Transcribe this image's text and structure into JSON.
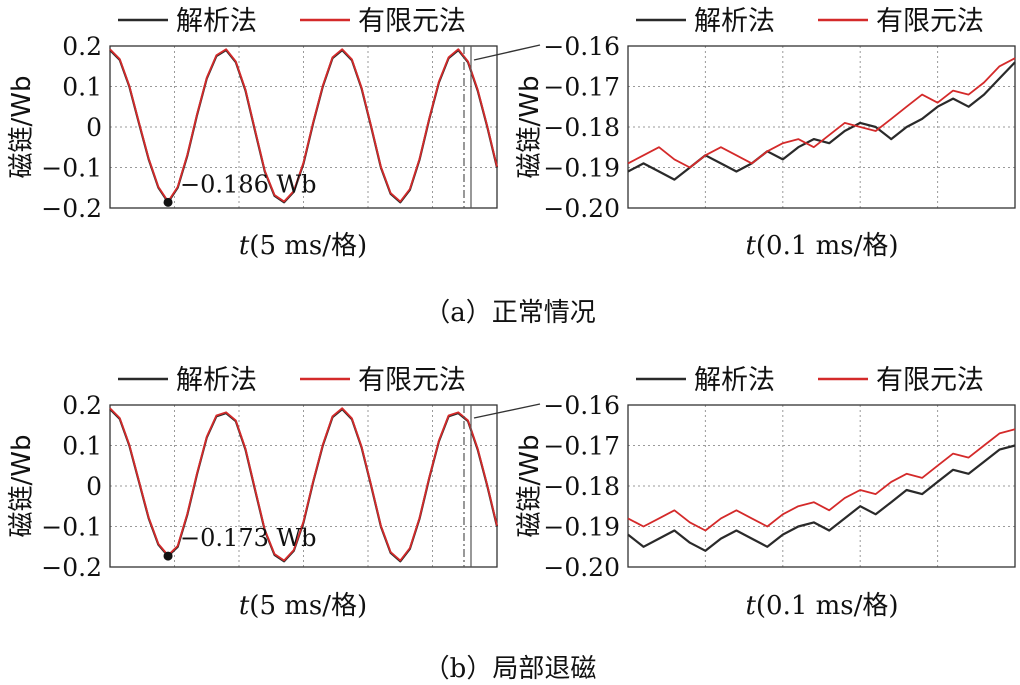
{
  "figure": {
    "legend": {
      "analytic": "解析法",
      "fem": "有限元法"
    },
    "colors": {
      "analytic": "#2a2a2a",
      "fem": "#d42a2a",
      "grid": "#9a9a9a",
      "axis": "#333333"
    },
    "ylabel": "磁链/Wb",
    "xlabel_italic": "t",
    "xlabel_wide": "(5 ms/格)",
    "xlabel_zoom": "(0.1 ms/格)",
    "captions": [
      "（a）正常情况",
      "（b）局部退磁"
    ]
  },
  "chart_data": [
    {
      "id": "a-full",
      "type": "line",
      "ylim": [
        -0.2,
        0.2
      ],
      "yticks": [
        "0.2",
        "0.1",
        "0",
        "−0.1",
        "−0.2"
      ],
      "ytick_values": [
        0.2,
        0.1,
        0,
        -0.1,
        -0.2
      ],
      "x_divisions": 6,
      "grid": true,
      "legend_position": "top",
      "series": [
        {
          "name": "解析法",
          "x": [
            0,
            0.15,
            0.3,
            0.45,
            0.6,
            0.75,
            0.9,
            1.05,
            1.2,
            1.35,
            1.5,
            1.65,
            1.8,
            1.95,
            2.1,
            2.25,
            2.4,
            2.55,
            2.7,
            2.85,
            3.0,
            3.15,
            3.3,
            3.45,
            3.6,
            3.75,
            3.9,
            4.05,
            4.2,
            4.35,
            4.5,
            4.65,
            4.8,
            4.95,
            5.1,
            5.25,
            5.4,
            5.55,
            5.7,
            5.85,
            6.0
          ],
          "y": [
            0.19,
            0.166,
            0.1,
            0.009,
            -0.08,
            -0.15,
            -0.186,
            -0.15,
            -0.07,
            0.03,
            0.12,
            0.175,
            0.19,
            0.16,
            0.09,
            -0.01,
            -0.11,
            -0.17,
            -0.186,
            -0.16,
            -0.09,
            0.01,
            0.1,
            0.17,
            0.19,
            0.165,
            0.095,
            0.0,
            -0.1,
            -0.165,
            -0.186,
            -0.155,
            -0.08,
            0.02,
            0.11,
            0.17,
            0.19,
            0.16,
            0.09,
            0.0,
            -0.1
          ]
        },
        {
          "name": "有限元法",
          "x": [
            0,
            0.15,
            0.3,
            0.45,
            0.6,
            0.75,
            0.9,
            1.05,
            1.2,
            1.35,
            1.5,
            1.65,
            1.8,
            1.95,
            2.1,
            2.25,
            2.4,
            2.55,
            2.7,
            2.85,
            3.0,
            3.15,
            3.3,
            3.45,
            3.6,
            3.75,
            3.9,
            4.05,
            4.2,
            4.35,
            4.5,
            4.65,
            4.8,
            4.95,
            5.1,
            5.25,
            5.4,
            5.55,
            5.7,
            5.85,
            6.0
          ],
          "y": [
            0.192,
            0.168,
            0.102,
            0.011,
            -0.078,
            -0.148,
            -0.184,
            -0.148,
            -0.068,
            0.032,
            0.122,
            0.177,
            0.192,
            0.162,
            0.092,
            -0.008,
            -0.108,
            -0.168,
            -0.184,
            -0.158,
            -0.088,
            0.012,
            0.102,
            0.172,
            0.192,
            0.167,
            0.097,
            0.002,
            -0.098,
            -0.163,
            -0.184,
            -0.153,
            -0.078,
            0.022,
            0.112,
            0.172,
            0.192,
            0.162,
            0.092,
            0.002,
            -0.098
          ]
        }
      ],
      "marker": {
        "x": 0.9,
        "y": -0.186,
        "label": "−0.186 Wb"
      }
    },
    {
      "id": "a-zoom",
      "type": "line",
      "ylim": [
        -0.2,
        -0.16
      ],
      "yticks": [
        "−0.16",
        "−0.17",
        "−0.18",
        "−0.19",
        "−0.20"
      ],
      "ytick_values": [
        -0.16,
        -0.17,
        -0.18,
        -0.19,
        -0.2
      ],
      "x_divisions": 5,
      "grid": true,
      "legend_position": "top",
      "series": [
        {
          "name": "解析法",
          "x": [
            0,
            0.2,
            0.4,
            0.6,
            0.8,
            1.0,
            1.2,
            1.4,
            1.6,
            1.8,
            2.0,
            2.2,
            2.4,
            2.6,
            2.8,
            3.0,
            3.2,
            3.4,
            3.6,
            3.8,
            4.0,
            4.2,
            4.4,
            4.6,
            4.8,
            5.0
          ],
          "y": [
            -0.191,
            -0.189,
            -0.191,
            -0.193,
            -0.19,
            -0.187,
            -0.189,
            -0.191,
            -0.189,
            -0.186,
            -0.188,
            -0.185,
            -0.183,
            -0.184,
            -0.181,
            -0.179,
            -0.18,
            -0.183,
            -0.18,
            -0.178,
            -0.175,
            -0.173,
            -0.175,
            -0.172,
            -0.168,
            -0.164
          ]
        },
        {
          "name": "有限元法",
          "x": [
            0,
            0.2,
            0.4,
            0.6,
            0.8,
            1.0,
            1.2,
            1.4,
            1.6,
            1.8,
            2.0,
            2.2,
            2.4,
            2.6,
            2.8,
            3.0,
            3.2,
            3.4,
            3.6,
            3.8,
            4.0,
            4.2,
            4.4,
            4.6,
            4.8,
            5.0
          ],
          "y": [
            -0.189,
            -0.187,
            -0.185,
            -0.188,
            -0.19,
            -0.187,
            -0.185,
            -0.187,
            -0.189,
            -0.186,
            -0.184,
            -0.183,
            -0.185,
            -0.182,
            -0.179,
            -0.18,
            -0.181,
            -0.178,
            -0.175,
            -0.172,
            -0.174,
            -0.171,
            -0.172,
            -0.169,
            -0.165,
            -0.163
          ]
        }
      ]
    },
    {
      "id": "b-full",
      "type": "line",
      "ylim": [
        -0.2,
        0.2
      ],
      "yticks": [
        "0.2",
        "0.1",
        "0",
        "−0.1",
        "−0.2"
      ],
      "ytick_values": [
        0.2,
        0.1,
        0,
        -0.1,
        -0.2
      ],
      "x_divisions": 6,
      "grid": true,
      "legend_position": "top",
      "series": [
        {
          "name": "解析法",
          "x": [
            0,
            0.15,
            0.3,
            0.45,
            0.6,
            0.75,
            0.9,
            1.05,
            1.2,
            1.35,
            1.5,
            1.65,
            1.8,
            1.95,
            2.1,
            2.25,
            2.4,
            2.55,
            2.7,
            2.85,
            3.0,
            3.15,
            3.3,
            3.45,
            3.6,
            3.75,
            3.9,
            4.05,
            4.2,
            4.35,
            4.5,
            4.65,
            4.8,
            4.95,
            5.1,
            5.25,
            5.4,
            5.55,
            5.7,
            5.85,
            6.0
          ],
          "y": [
            0.19,
            0.166,
            0.1,
            0.01,
            -0.08,
            -0.145,
            -0.173,
            -0.15,
            -0.07,
            0.03,
            0.12,
            0.172,
            0.18,
            0.16,
            0.09,
            -0.01,
            -0.11,
            -0.17,
            -0.186,
            -0.16,
            -0.09,
            0.01,
            0.1,
            0.17,
            0.19,
            0.165,
            0.095,
            0.0,
            -0.1,
            -0.165,
            -0.186,
            -0.155,
            -0.08,
            0.02,
            0.11,
            0.172,
            0.18,
            0.16,
            0.09,
            0.0,
            -0.1
          ]
        },
        {
          "name": "有限元法",
          "x": [
            0,
            0.15,
            0.3,
            0.45,
            0.6,
            0.75,
            0.9,
            1.05,
            1.2,
            1.35,
            1.5,
            1.65,
            1.8,
            1.95,
            2.1,
            2.25,
            2.4,
            2.55,
            2.7,
            2.85,
            3.0,
            3.15,
            3.3,
            3.45,
            3.6,
            3.75,
            3.9,
            4.05,
            4.2,
            4.35,
            4.5,
            4.65,
            4.8,
            4.95,
            5.1,
            5.25,
            5.4,
            5.55,
            5.7,
            5.85,
            6.0
          ],
          "y": [
            0.192,
            0.168,
            0.102,
            0.012,
            -0.078,
            -0.143,
            -0.171,
            -0.148,
            -0.068,
            0.032,
            0.122,
            0.174,
            0.182,
            0.162,
            0.092,
            -0.008,
            -0.108,
            -0.168,
            -0.184,
            -0.158,
            -0.088,
            0.012,
            0.102,
            0.172,
            0.192,
            0.167,
            0.097,
            0.002,
            -0.098,
            -0.163,
            -0.184,
            -0.153,
            -0.078,
            0.022,
            0.112,
            0.174,
            0.182,
            0.162,
            0.092,
            0.002,
            -0.098
          ]
        }
      ],
      "marker": {
        "x": 0.9,
        "y": -0.173,
        "label": "−0.173 Wb"
      }
    },
    {
      "id": "b-zoom",
      "type": "line",
      "ylim": [
        -0.2,
        -0.16
      ],
      "yticks": [
        "−0.16",
        "−0.17",
        "−0.18",
        "−0.19",
        "−0.20"
      ],
      "ytick_values": [
        -0.16,
        -0.17,
        -0.18,
        -0.19,
        -0.2
      ],
      "x_divisions": 5,
      "grid": true,
      "legend_position": "top",
      "series": [
        {
          "name": "解析法",
          "x": [
            0,
            0.2,
            0.4,
            0.6,
            0.8,
            1.0,
            1.2,
            1.4,
            1.6,
            1.8,
            2.0,
            2.2,
            2.4,
            2.6,
            2.8,
            3.0,
            3.2,
            3.4,
            3.6,
            3.8,
            4.0,
            4.2,
            4.4,
            4.6,
            4.8,
            5.0
          ],
          "y": [
            -0.192,
            -0.195,
            -0.193,
            -0.191,
            -0.194,
            -0.196,
            -0.193,
            -0.191,
            -0.193,
            -0.195,
            -0.192,
            -0.19,
            -0.189,
            -0.191,
            -0.188,
            -0.185,
            -0.187,
            -0.184,
            -0.181,
            -0.182,
            -0.179,
            -0.176,
            -0.177,
            -0.174,
            -0.171,
            -0.17
          ]
        },
        {
          "name": "有限元法",
          "x": [
            0,
            0.2,
            0.4,
            0.6,
            0.8,
            1.0,
            1.2,
            1.4,
            1.6,
            1.8,
            2.0,
            2.2,
            2.4,
            2.6,
            2.8,
            3.0,
            3.2,
            3.4,
            3.6,
            3.8,
            4.0,
            4.2,
            4.4,
            4.6,
            4.8,
            5.0
          ],
          "y": [
            -0.188,
            -0.19,
            -0.188,
            -0.186,
            -0.189,
            -0.191,
            -0.188,
            -0.186,
            -0.188,
            -0.19,
            -0.187,
            -0.185,
            -0.184,
            -0.186,
            -0.183,
            -0.181,
            -0.182,
            -0.179,
            -0.177,
            -0.178,
            -0.175,
            -0.172,
            -0.173,
            -0.17,
            -0.167,
            -0.166
          ]
        }
      ]
    }
  ]
}
